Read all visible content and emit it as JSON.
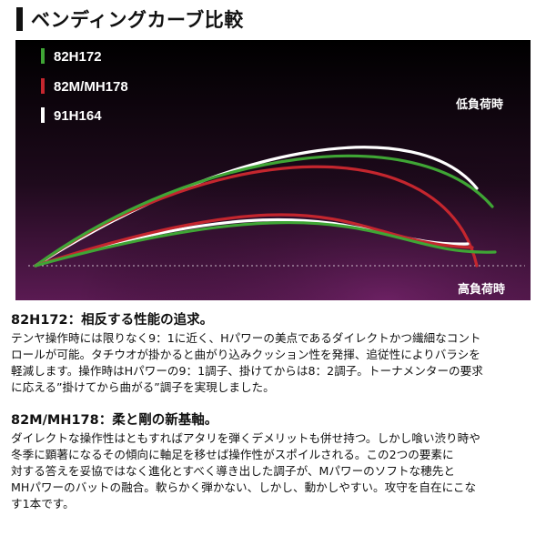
{
  "page": {
    "heading": "ベンディングカーブ比較"
  },
  "chart_data": {
    "type": "line",
    "title": "ベンディングカーブ比較",
    "legend": [
      {
        "name": "82H172",
        "color": "#3fa535"
      },
      {
        "name": "82M/MH178",
        "color": "#c4262e"
      },
      {
        "name": "91H164",
        "color": "#ffffff"
      }
    ],
    "legend_position": "top-left",
    "annotations": {
      "low_load": "低負荷時",
      "high_load": "高負荷時"
    },
    "background": [
      "#000000",
      "#5a1a52"
    ],
    "grid": false,
    "curves": {
      "low_load": {
        "82H172": {
          "from": [
            0,
            0
          ],
          "c1": [
            360,
            100
          ],
          "c2": [
            380,
            10
          ],
          "to": [
            505,
            15
          ]
        },
        "82M/MH178": {
          "from": [
            0,
            0
          ],
          "c1": [
            340,
            110
          ],
          "c2": [
            340,
            25
          ],
          "to": [
            480,
            20
          ]
        },
        "91H164": {
          "from": [
            0,
            0
          ],
          "c1": [
            320,
            100
          ],
          "c2": [
            360,
            20
          ],
          "to": [
            475,
            24
          ]
        }
      },
      "high_load": {
        "82H172": {
          "from": [
            0,
            0
          ],
          "c1": [
            180,
            130
          ],
          "c2": [
            420,
            160
          ],
          "to": [
            502,
            65
          ]
        },
        "82M/MH178": {
          "from": [
            0,
            0
          ],
          "c1": [
            200,
            140
          ],
          "c2": [
            450,
            150
          ],
          "to": [
            485,
            0
          ]
        },
        "91H164": {
          "from": [
            0,
            0
          ],
          "c1": [
            220,
            140
          ],
          "c2": [
            420,
            165
          ],
          "to": [
            485,
            85
          ]
        }
      }
    }
  },
  "descriptions": [
    {
      "title": "82H172：相反する性能の追求。",
      "lines": [
        "テンヤ操作時には限りなく9：1に近く、Hパワーの美点であるダイレクトかつ繊細なコント",
        "ロールが可能。タチウオが掛かると曲がり込みクッション性を発揮、追従性によりバラシを",
        "軽減します。操作時はHパワーの9：1調子、掛けてからは8：2調子。トーナメンターの要求",
        "に応える”掛けてから曲がる”調子を実現しました。"
      ]
    },
    {
      "title": "82M/MH178：柔と剛の新基軸。",
      "lines": [
        "ダイレクトな操作性はともすればアタリを弾くデメリットも併せ持つ。しかし喰い渋り時や",
        "冬季に顕著になるその傾向に軸足を移せば操作性がスポイルされる。この2つの要素に",
        "対する答えを妥協ではなく進化とすべく導き出した調子が、Mパワーのソフトな穂先と",
        "MHパワーのバットの融合。軟らかく弾かない、しかし、動かしやすい。攻守を自在にこな",
        "す1本です。"
      ]
    }
  ]
}
